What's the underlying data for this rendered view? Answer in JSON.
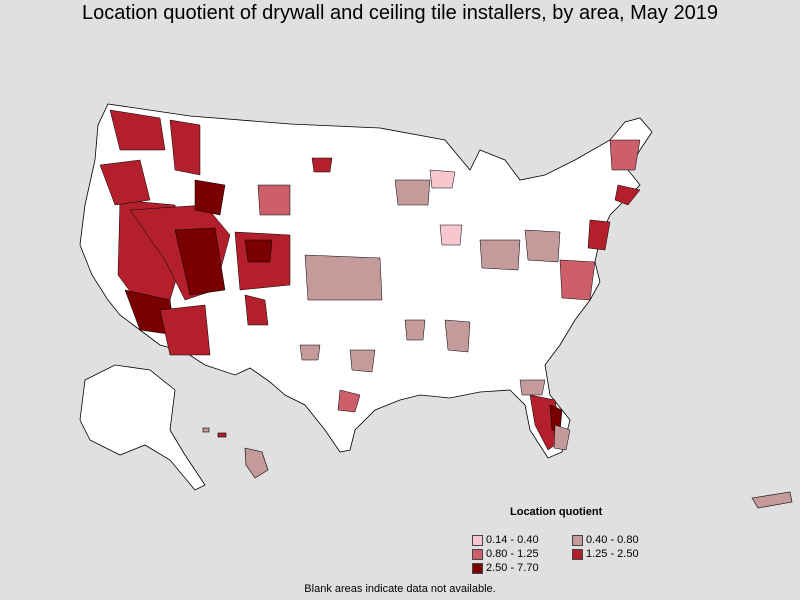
{
  "title": "Location quotient of drywall and ceiling tile installers, by area, May 2019",
  "legend": {
    "title": "Location quotient",
    "items": [
      {
        "label": "0.14 - 0.40",
        "color": "#f7c6cf"
      },
      {
        "label": "0.40 - 0.80",
        "color": "#c49a9a"
      },
      {
        "label": "0.80 - 1.25",
        "color": "#cc5f6a"
      },
      {
        "label": "1.25 - 2.50",
        "color": "#b3202c"
      },
      {
        "label": "2.50 - 7.70",
        "color": "#7a0000"
      }
    ]
  },
  "footnote": "Blank areas indicate data not available.",
  "colors": {
    "background": "#e0e0e0",
    "land_blank": "#ffffff",
    "border": "#000000"
  }
}
